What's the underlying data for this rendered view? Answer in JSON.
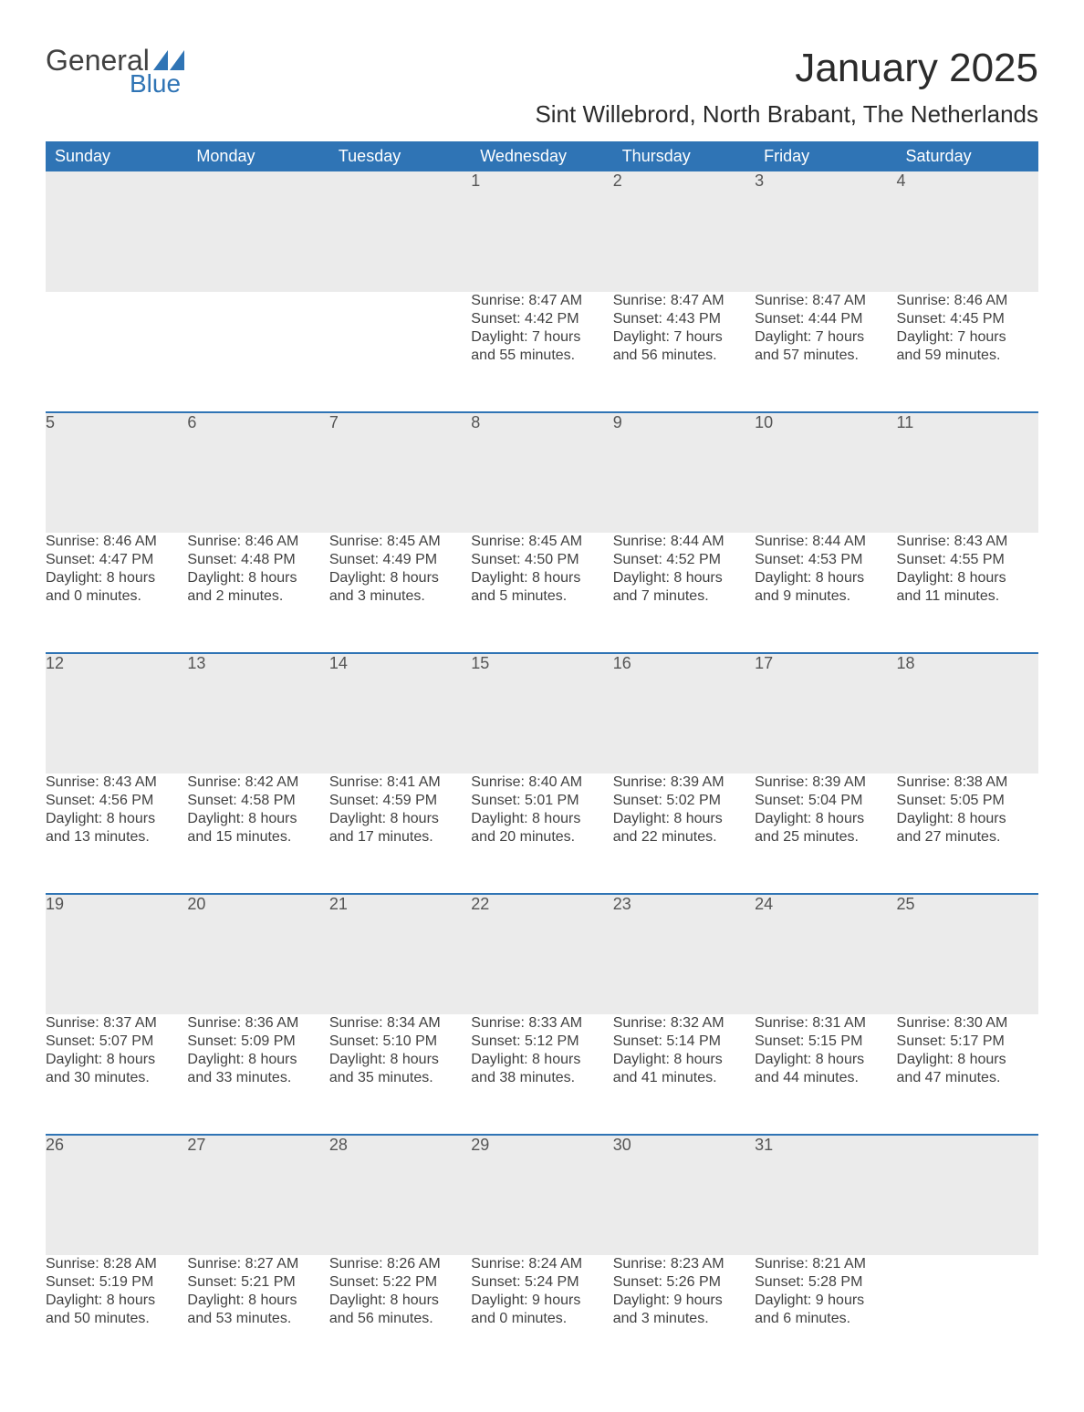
{
  "brand": {
    "word1": "General",
    "word2": "Blue",
    "color_primary": "#2f74b5",
    "color_text": "#414141"
  },
  "title": "January 2025",
  "location": "Sint Willebrord, North Brabant, The Netherlands",
  "colors": {
    "header_bg": "#2f74b5",
    "header_text": "#ffffff",
    "daynum_bg": "#ebebeb",
    "row_border": "#2f74b5",
    "body_text": "#414141",
    "background": "#ffffff"
  },
  "typography": {
    "title_fontsize": 44,
    "location_fontsize": 26,
    "header_fontsize": 18,
    "cell_fontsize": 16
  },
  "day_headers": [
    "Sunday",
    "Monday",
    "Tuesday",
    "Wednesday",
    "Thursday",
    "Friday",
    "Saturday"
  ],
  "weeks": [
    [
      null,
      null,
      null,
      {
        "n": "1",
        "sunrise": "Sunrise: 8:47 AM",
        "sunset": "Sunset: 4:42 PM",
        "d1": "Daylight: 7 hours",
        "d2": "and 55 minutes."
      },
      {
        "n": "2",
        "sunrise": "Sunrise: 8:47 AM",
        "sunset": "Sunset: 4:43 PM",
        "d1": "Daylight: 7 hours",
        "d2": "and 56 minutes."
      },
      {
        "n": "3",
        "sunrise": "Sunrise: 8:47 AM",
        "sunset": "Sunset: 4:44 PM",
        "d1": "Daylight: 7 hours",
        "d2": "and 57 minutes."
      },
      {
        "n": "4",
        "sunrise": "Sunrise: 8:46 AM",
        "sunset": "Sunset: 4:45 PM",
        "d1": "Daylight: 7 hours",
        "d2": "and 59 minutes."
      }
    ],
    [
      {
        "n": "5",
        "sunrise": "Sunrise: 8:46 AM",
        "sunset": "Sunset: 4:47 PM",
        "d1": "Daylight: 8 hours",
        "d2": "and 0 minutes."
      },
      {
        "n": "6",
        "sunrise": "Sunrise: 8:46 AM",
        "sunset": "Sunset: 4:48 PM",
        "d1": "Daylight: 8 hours",
        "d2": "and 2 minutes."
      },
      {
        "n": "7",
        "sunrise": "Sunrise: 8:45 AM",
        "sunset": "Sunset: 4:49 PM",
        "d1": "Daylight: 8 hours",
        "d2": "and 3 minutes."
      },
      {
        "n": "8",
        "sunrise": "Sunrise: 8:45 AM",
        "sunset": "Sunset: 4:50 PM",
        "d1": "Daylight: 8 hours",
        "d2": "and 5 minutes."
      },
      {
        "n": "9",
        "sunrise": "Sunrise: 8:44 AM",
        "sunset": "Sunset: 4:52 PM",
        "d1": "Daylight: 8 hours",
        "d2": "and 7 minutes."
      },
      {
        "n": "10",
        "sunrise": "Sunrise: 8:44 AM",
        "sunset": "Sunset: 4:53 PM",
        "d1": "Daylight: 8 hours",
        "d2": "and 9 minutes."
      },
      {
        "n": "11",
        "sunrise": "Sunrise: 8:43 AM",
        "sunset": "Sunset: 4:55 PM",
        "d1": "Daylight: 8 hours",
        "d2": "and 11 minutes."
      }
    ],
    [
      {
        "n": "12",
        "sunrise": "Sunrise: 8:43 AM",
        "sunset": "Sunset: 4:56 PM",
        "d1": "Daylight: 8 hours",
        "d2": "and 13 minutes."
      },
      {
        "n": "13",
        "sunrise": "Sunrise: 8:42 AM",
        "sunset": "Sunset: 4:58 PM",
        "d1": "Daylight: 8 hours",
        "d2": "and 15 minutes."
      },
      {
        "n": "14",
        "sunrise": "Sunrise: 8:41 AM",
        "sunset": "Sunset: 4:59 PM",
        "d1": "Daylight: 8 hours",
        "d2": "and 17 minutes."
      },
      {
        "n": "15",
        "sunrise": "Sunrise: 8:40 AM",
        "sunset": "Sunset: 5:01 PM",
        "d1": "Daylight: 8 hours",
        "d2": "and 20 minutes."
      },
      {
        "n": "16",
        "sunrise": "Sunrise: 8:39 AM",
        "sunset": "Sunset: 5:02 PM",
        "d1": "Daylight: 8 hours",
        "d2": "and 22 minutes."
      },
      {
        "n": "17",
        "sunrise": "Sunrise: 8:39 AM",
        "sunset": "Sunset: 5:04 PM",
        "d1": "Daylight: 8 hours",
        "d2": "and 25 minutes."
      },
      {
        "n": "18",
        "sunrise": "Sunrise: 8:38 AM",
        "sunset": "Sunset: 5:05 PM",
        "d1": "Daylight: 8 hours",
        "d2": "and 27 minutes."
      }
    ],
    [
      {
        "n": "19",
        "sunrise": "Sunrise: 8:37 AM",
        "sunset": "Sunset: 5:07 PM",
        "d1": "Daylight: 8 hours",
        "d2": "and 30 minutes."
      },
      {
        "n": "20",
        "sunrise": "Sunrise: 8:36 AM",
        "sunset": "Sunset: 5:09 PM",
        "d1": "Daylight: 8 hours",
        "d2": "and 33 minutes."
      },
      {
        "n": "21",
        "sunrise": "Sunrise: 8:34 AM",
        "sunset": "Sunset: 5:10 PM",
        "d1": "Daylight: 8 hours",
        "d2": "and 35 minutes."
      },
      {
        "n": "22",
        "sunrise": "Sunrise: 8:33 AM",
        "sunset": "Sunset: 5:12 PM",
        "d1": "Daylight: 8 hours",
        "d2": "and 38 minutes."
      },
      {
        "n": "23",
        "sunrise": "Sunrise: 8:32 AM",
        "sunset": "Sunset: 5:14 PM",
        "d1": "Daylight: 8 hours",
        "d2": "and 41 minutes."
      },
      {
        "n": "24",
        "sunrise": "Sunrise: 8:31 AM",
        "sunset": "Sunset: 5:15 PM",
        "d1": "Daylight: 8 hours",
        "d2": "and 44 minutes."
      },
      {
        "n": "25",
        "sunrise": "Sunrise: 8:30 AM",
        "sunset": "Sunset: 5:17 PM",
        "d1": "Daylight: 8 hours",
        "d2": "and 47 minutes."
      }
    ],
    [
      {
        "n": "26",
        "sunrise": "Sunrise: 8:28 AM",
        "sunset": "Sunset: 5:19 PM",
        "d1": "Daylight: 8 hours",
        "d2": "and 50 minutes."
      },
      {
        "n": "27",
        "sunrise": "Sunrise: 8:27 AM",
        "sunset": "Sunset: 5:21 PM",
        "d1": "Daylight: 8 hours",
        "d2": "and 53 minutes."
      },
      {
        "n": "28",
        "sunrise": "Sunrise: 8:26 AM",
        "sunset": "Sunset: 5:22 PM",
        "d1": "Daylight: 8 hours",
        "d2": "and 56 minutes."
      },
      {
        "n": "29",
        "sunrise": "Sunrise: 8:24 AM",
        "sunset": "Sunset: 5:24 PM",
        "d1": "Daylight: 9 hours",
        "d2": "and 0 minutes."
      },
      {
        "n": "30",
        "sunrise": "Sunrise: 8:23 AM",
        "sunset": "Sunset: 5:26 PM",
        "d1": "Daylight: 9 hours",
        "d2": "and 3 minutes."
      },
      {
        "n": "31",
        "sunrise": "Sunrise: 8:21 AM",
        "sunset": "Sunset: 5:28 PM",
        "d1": "Daylight: 9 hours",
        "d2": "and 6 minutes."
      },
      null
    ]
  ]
}
